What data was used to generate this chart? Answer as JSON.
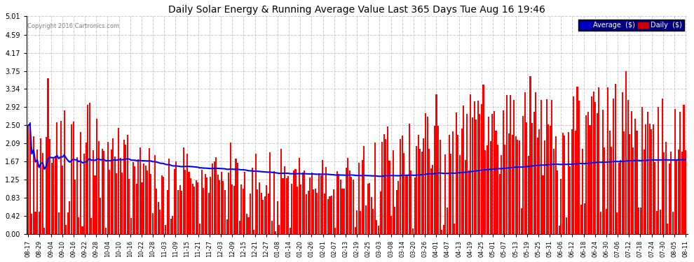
{
  "title": "Daily Solar Energy & Running Average Value Last 365 Days Tue Aug 16 19:46",
  "copyright": "Copyright 2016 Cartronics.com",
  "bar_color": "#ff0000",
  "avg_line_color": "#0000ff",
  "background_color": "#ffffff",
  "plot_bg_color": "#ffffff",
  "grid_color": "#cccccc",
  "yticks": [
    0.0,
    0.42,
    0.83,
    1.25,
    1.67,
    2.09,
    2.5,
    2.92,
    3.34,
    3.75,
    4.17,
    4.59,
    5.01
  ],
  "ylim": [
    0,
    5.01
  ],
  "legend_avg_label": "Average  ($)",
  "legend_daily_label": "Daily  ($)",
  "legend_avg_bg": "#0000cc",
  "legend_daily_bg": "#cc0000"
}
